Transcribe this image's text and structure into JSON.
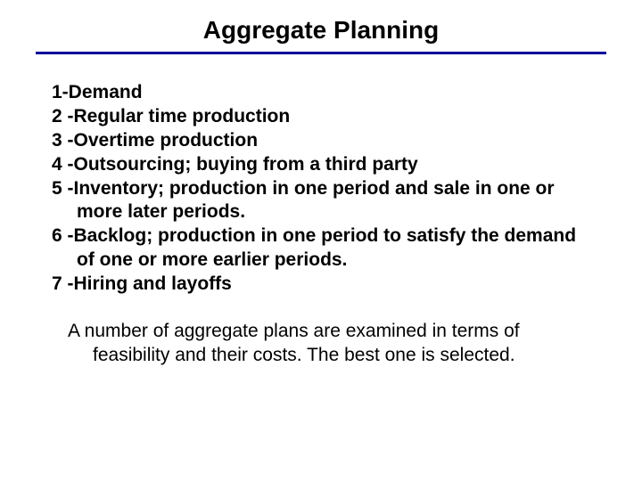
{
  "colors": {
    "hr": "#000099",
    "text": "#000000",
    "background": "#ffffff"
  },
  "typography": {
    "title_fontsize": 28,
    "body_fontsize": 21,
    "body_weight": "bold",
    "para_weight": "normal",
    "font_family": "Arial"
  },
  "title": "Aggregate Planning",
  "items": [
    "1-Demand",
    "2 -Regular time production",
    "3 -Overtime production",
    "4 -Outsourcing; buying from a third party",
    "5 -Inventory; production in one period and sale in one or more later periods.",
    "6 -Backlog; production in one period to satisfy the demand of one or more earlier periods.",
    "7 -Hiring and layoffs"
  ],
  "paragraph": "A number of aggregate plans are examined in terms of feasibility and their costs. The best one is selected."
}
